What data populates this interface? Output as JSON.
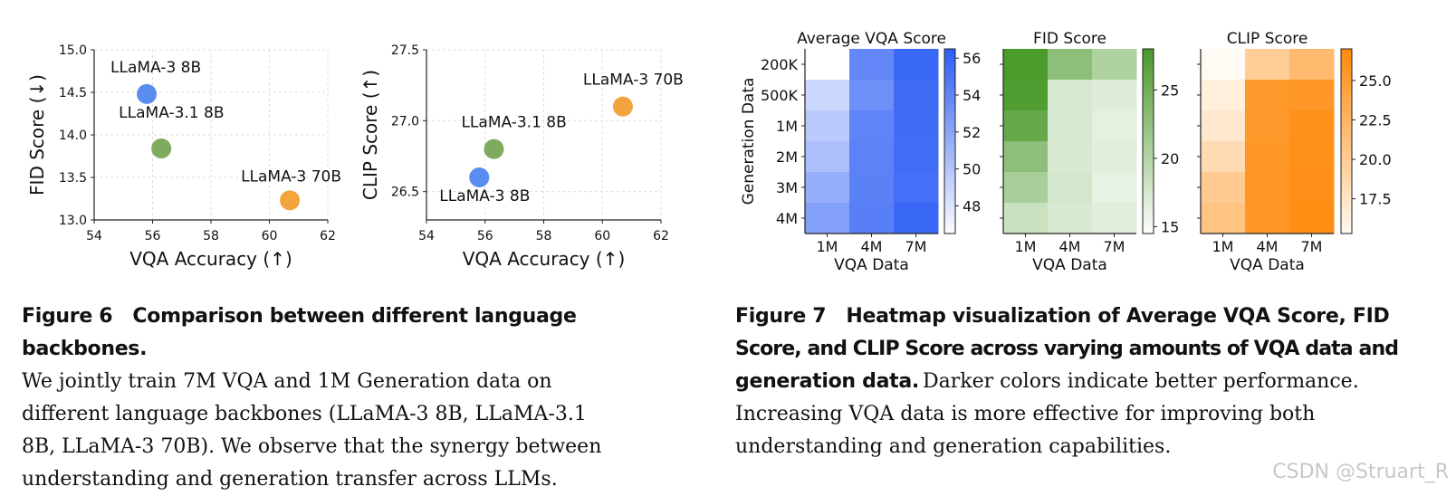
{
  "chart_data": [
    {
      "type": "scatter",
      "ylabel": "FID Score (↓)",
      "xlabel": "VQA Accuracy (↑)",
      "xlim": [
        54,
        62
      ],
      "ylim": [
        13.0,
        15.0
      ],
      "xticks": [
        54,
        56,
        58,
        60,
        62
      ],
      "yticks": [
        13.0,
        13.5,
        14.0,
        14.5,
        15.0
      ],
      "grid": true,
      "points": [
        {
          "label": "LLaMA-3 8B",
          "x": 55.8,
          "y": 14.48,
          "color": "#5b8cf0"
        },
        {
          "label": "LLaMA-3.1 8B",
          "x": 56.3,
          "y": 13.84,
          "color": "#7fab5f"
        },
        {
          "label": "LLaMA-3 70B",
          "x": 60.7,
          "y": 13.23,
          "color": "#f3a43c"
        }
      ]
    },
    {
      "type": "scatter",
      "ylabel": "CLIP Score (↑)",
      "xlabel": "VQA Accuracy (↑)",
      "xlim": [
        54,
        62
      ],
      "ylim": [
        26.3,
        27.5
      ],
      "xticks": [
        54,
        56,
        58,
        60,
        62
      ],
      "yticks": [
        26.5,
        27.0,
        27.5
      ],
      "grid": true,
      "points": [
        {
          "label": "LLaMA-3 8B",
          "x": 55.8,
          "y": 26.6,
          "color": "#5b8cf0"
        },
        {
          "label": "LLaMA-3.1 8B",
          "x": 56.3,
          "y": 26.8,
          "color": "#7fab5f"
        },
        {
          "label": "LLaMA-3 70B",
          "x": 60.7,
          "y": 27.1,
          "color": "#f3a43c"
        }
      ]
    },
    {
      "type": "heatmap",
      "title": "Average VQA Score",
      "xlabel": "VQA Data",
      "ylabel": "Generation Data",
      "x_categories": [
        "1M",
        "4M",
        "7M"
      ],
      "y_categories": [
        "200K",
        "500K",
        "1M",
        "2M",
        "3M",
        "4M"
      ],
      "values": [
        [
          46.5,
          54.0,
          56.0
        ],
        [
          49.0,
          53.5,
          55.8
        ],
        [
          49.8,
          54.2,
          55.7
        ],
        [
          50.5,
          54.3,
          55.6
        ],
        [
          51.5,
          54.4,
          55.5
        ],
        [
          52.5,
          54.5,
          56.0
        ]
      ],
      "vmin": 46.5,
      "vmax": 56.5,
      "colorbar_ticks": [
        48,
        50,
        52,
        54,
        56
      ],
      "colormap": [
        "#ffffff",
        "#2f5ff5"
      ]
    },
    {
      "type": "heatmap",
      "title": "FID Score",
      "xlabel": "VQA Data",
      "x_categories": [
        "1M",
        "4M",
        "7M"
      ],
      "y_categories": [
        "200K",
        "500K",
        "1M",
        "2M",
        "3M",
        "4M"
      ],
      "values": [
        [
          28.0,
          23.0,
          20.5
        ],
        [
          27.6,
          17.5,
          17.0
        ],
        [
          26.0,
          17.6,
          16.5
        ],
        [
          23.0,
          17.4,
          16.8
        ],
        [
          21.0,
          17.7,
          16.2
        ],
        [
          18.5,
          17.5,
          16.9
        ]
      ],
      "vmin": 14.5,
      "vmax": 28.0,
      "colorbar_ticks": [
        15,
        20,
        25
      ],
      "colormap": [
        "#ffffff",
        "#4b9a2c"
      ]
    },
    {
      "type": "heatmap",
      "title": "CLIP Score",
      "xlabel": "VQA Data",
      "x_categories": [
        "1M",
        "4M",
        "7M"
      ],
      "y_categories": [
        "200K",
        "500K",
        "1M",
        "2M",
        "3M",
        "4M"
      ],
      "values": [
        [
          15.3,
          20.0,
          22.0
        ],
        [
          16.5,
          25.4,
          25.6
        ],
        [
          17.2,
          25.5,
          26.3
        ],
        [
          18.5,
          25.6,
          26.4
        ],
        [
          20.2,
          25.7,
          26.5
        ],
        [
          21.0,
          25.6,
          26.6
        ]
      ],
      "vmin": 15.3,
      "vmax": 27.0,
      "colorbar_ticks": [
        17.5,
        20.0,
        22.5,
        25.0
      ],
      "colormap": [
        "#fffaf3",
        "#ff8a0c"
      ]
    }
  ],
  "fig6": {
    "label": "Figure 6",
    "title": "Comparison between different language backbones.",
    "lines": [
      "We jointly train 7M VQA and 1M Generation data on",
      "different language backbones (LLaMA-3 8B, LLaMA-3.1",
      "8B, LLaMA-3 70B). We observe that the synergy between",
      "understanding and generation transfer across LLMs."
    ]
  },
  "fig7": {
    "label": "Figure 7",
    "title_lines": [
      "Heatmap visualization of Average VQA Score, FID",
      "Score, and CLIP Score across varying amounts of VQA data and",
      "generation data."
    ],
    "body_first": "Darker colors indicate better performance.",
    "lines": [
      "Increasing VQA data is more effective for improving both",
      "understanding and generation capabilities."
    ]
  },
  "watermark": "CSDN @Struart_R"
}
